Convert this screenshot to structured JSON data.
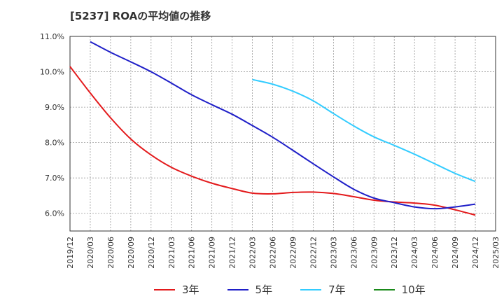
{
  "chart_data": {
    "type": "line",
    "title": "[5237]  ROAの平均値の推移",
    "xlabel": "",
    "ylabel": "",
    "x_categories": [
      "2019/12",
      "2020/03",
      "2020/06",
      "2020/09",
      "2020/12",
      "2021/03",
      "2021/06",
      "2021/09",
      "2021/12",
      "2022/03",
      "2022/06",
      "2022/09",
      "2022/12",
      "2023/03",
      "2023/06",
      "2023/09",
      "2023/12",
      "2024/03",
      "2024/06",
      "2024/09",
      "2024/12",
      "2025/03"
    ],
    "y_ticks": [
      "6.0%",
      "7.0%",
      "8.0%",
      "9.0%",
      "10.0%",
      "11.0%"
    ],
    "y_tick_values": [
      6,
      7,
      8,
      9,
      10,
      11
    ],
    "ylim": [
      5.5,
      11.0
    ],
    "grid": true,
    "legend_position": "bottom",
    "series": [
      {
        "name": "3年",
        "color": "#e31a1c",
        "x": [
          "2019/12",
          "2020/03",
          "2020/06",
          "2020/09",
          "2020/12",
          "2021/03",
          "2021/06",
          "2021/09",
          "2021/12",
          "2022/03",
          "2022/06",
          "2022/09",
          "2022/12",
          "2023/03",
          "2023/06",
          "2023/09",
          "2023/12",
          "2024/03",
          "2024/06",
          "2024/09",
          "2024/12"
        ],
        "values": [
          10.15,
          9.4,
          8.7,
          8.1,
          7.65,
          7.3,
          7.05,
          6.85,
          6.7,
          6.57,
          6.55,
          6.59,
          6.6,
          6.56,
          6.47,
          6.37,
          6.32,
          6.29,
          6.23,
          6.1,
          5.95
        ]
      },
      {
        "name": "5年",
        "color": "#1f1fc8",
        "x": [
          "2020/03",
          "2020/06",
          "2020/09",
          "2020/12",
          "2021/03",
          "2021/06",
          "2021/09",
          "2021/12",
          "2022/03",
          "2022/06",
          "2022/09",
          "2022/12",
          "2023/03",
          "2023/06",
          "2023/09",
          "2023/12",
          "2024/03",
          "2024/06",
          "2024/09",
          "2024/12"
        ],
        "values": [
          10.85,
          10.55,
          10.28,
          10.0,
          9.68,
          9.35,
          9.07,
          8.8,
          8.48,
          8.15,
          7.78,
          7.4,
          7.03,
          6.68,
          6.43,
          6.3,
          6.18,
          6.13,
          6.18,
          6.26
        ]
      },
      {
        "name": "7年",
        "color": "#33ccff",
        "x": [
          "2022/03",
          "2022/06",
          "2022/09",
          "2022/12",
          "2023/03",
          "2023/06",
          "2023/09",
          "2023/12",
          "2024/03",
          "2024/06",
          "2024/09",
          "2024/12"
        ],
        "values": [
          9.78,
          9.65,
          9.45,
          9.18,
          8.82,
          8.47,
          8.16,
          7.92,
          7.67,
          7.4,
          7.13,
          6.9
        ]
      },
      {
        "name": "10年",
        "color": "#1a8a1a",
        "x": [],
        "values": []
      }
    ]
  }
}
